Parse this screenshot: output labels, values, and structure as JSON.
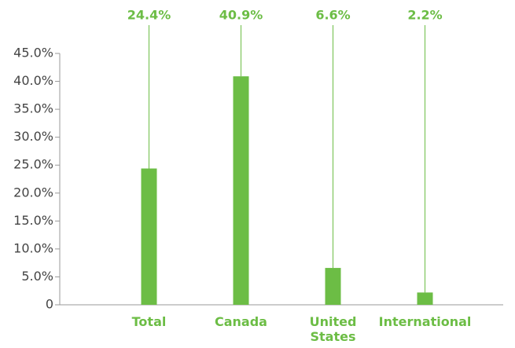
{
  "chart_data": {
    "type": "bar",
    "categories": [
      "Total",
      "Canada",
      "United States",
      "International"
    ],
    "values": [
      24.4,
      40.9,
      6.6,
      2.2
    ],
    "value_labels": [
      "24.4%",
      "40.9%",
      "6.6%",
      "2.2%"
    ],
    "color": "#6cbd45",
    "ylim": [
      0,
      45
    ],
    "yticks": [
      0,
      {
        "value": 5,
        "label": "5.0%"
      },
      {
        "value": 10,
        "label": "10.0%"
      },
      {
        "value": 15,
        "label": "15.0%"
      },
      {
        "value": 20,
        "label": "20.0%"
      },
      {
        "value": 25,
        "label": "25.0%"
      },
      {
        "value": 30,
        "label": "30.0%"
      },
      {
        "value": 35,
        "label": "35.0%"
      },
      {
        "value": 40,
        "label": "40.0%"
      },
      {
        "value": 45,
        "label": "45.0%"
      }
    ]
  }
}
